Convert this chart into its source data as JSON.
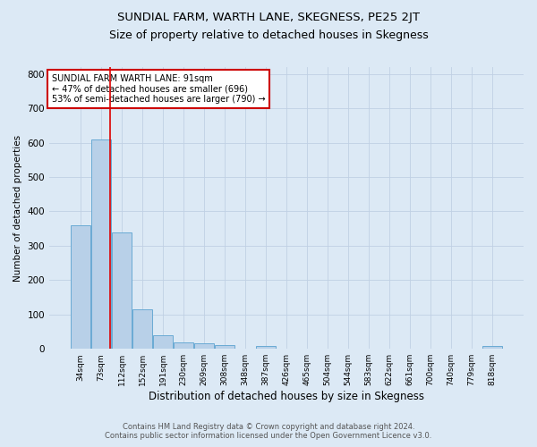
{
  "title": "SUNDIAL FARM, WARTH LANE, SKEGNESS, PE25 2JT",
  "subtitle": "Size of property relative to detached houses in Skegness",
  "xlabel": "Distribution of detached houses by size in Skegness",
  "ylabel": "Number of detached properties",
  "footer_line1": "Contains HM Land Registry data © Crown copyright and database right 2024.",
  "footer_line2": "Contains public sector information licensed under the Open Government Licence v3.0.",
  "bar_labels": [
    "34sqm",
    "73sqm",
    "112sqm",
    "152sqm",
    "191sqm",
    "230sqm",
    "269sqm",
    "308sqm",
    "348sqm",
    "387sqm",
    "426sqm",
    "465sqm",
    "504sqm",
    "544sqm",
    "583sqm",
    "622sqm",
    "661sqm",
    "700sqm",
    "740sqm",
    "779sqm",
    "818sqm"
  ],
  "bar_values": [
    360,
    610,
    340,
    115,
    40,
    20,
    17,
    10,
    0,
    8,
    0,
    0,
    0,
    0,
    0,
    0,
    0,
    0,
    0,
    0,
    8
  ],
  "bar_color": "#b8d0e8",
  "bar_edge_color": "#6aaad4",
  "property_line_x": 1.45,
  "property_line_color": "#dd0000",
  "annotation_box_text": "SUNDIAL FARM WARTH LANE: 91sqm\n← 47% of detached houses are smaller (696)\n53% of semi-detached houses are larger (790) →",
  "annotation_box_color": "#cc0000",
  "annotation_box_fill": "#ffffff",
  "ylim": [
    0,
    820
  ],
  "yticks": [
    0,
    100,
    200,
    300,
    400,
    500,
    600,
    700,
    800
  ],
  "grid_color": "#c0d0e4",
  "background_color": "#dce9f5",
  "plot_bg_color": "#dce9f5",
  "title_fontsize": 9.5,
  "subtitle_fontsize": 9
}
